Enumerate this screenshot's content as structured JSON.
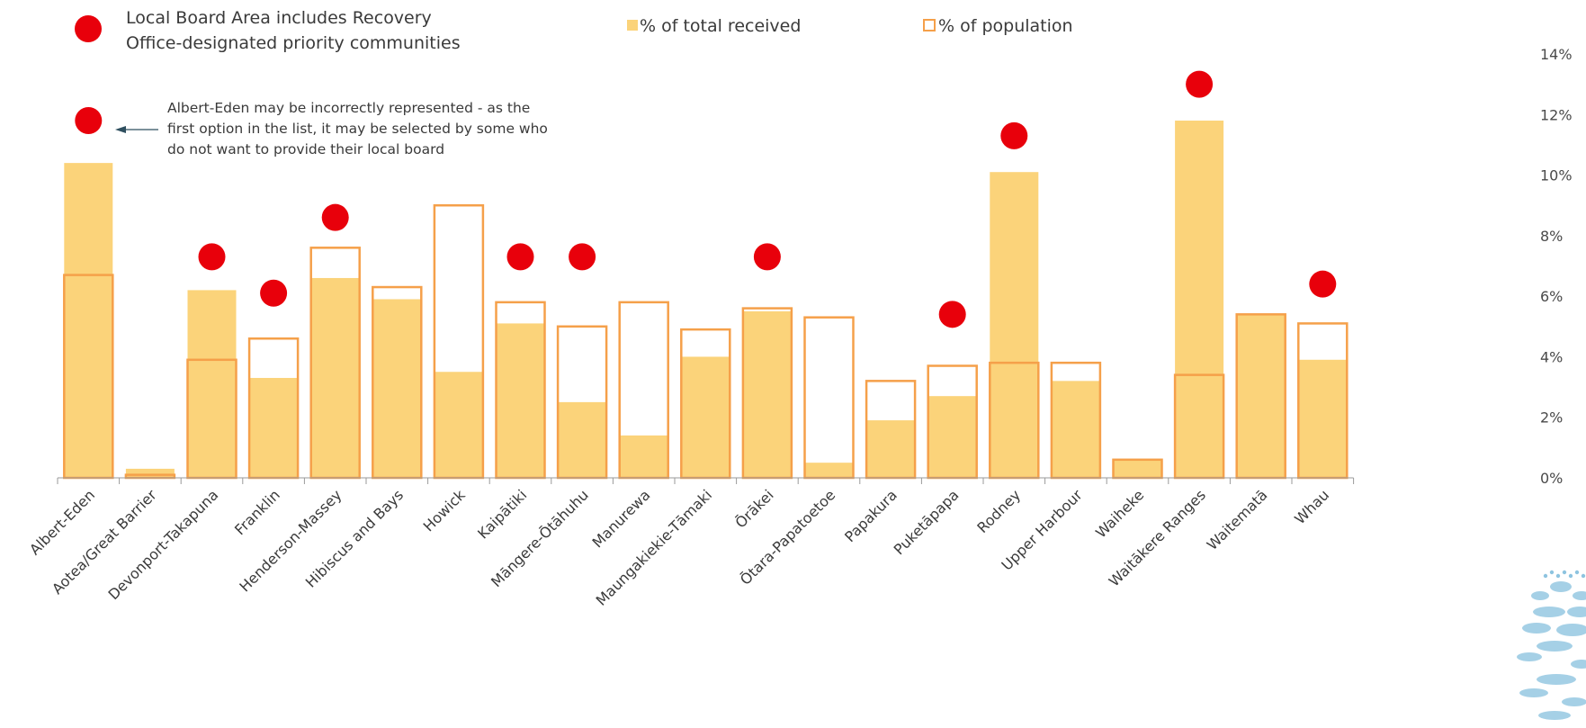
{
  "chart_data": {
    "type": "bar",
    "title": "",
    "xlabel": "",
    "ylabel": "",
    "ylim": [
      0,
      14
    ],
    "yticks": [
      0,
      2,
      4,
      6,
      8,
      10,
      12,
      14
    ],
    "ytick_labels": [
      "0%",
      "2%",
      "4%",
      "6%",
      "8%",
      "10%",
      "12%",
      "14%"
    ],
    "y_axis_side": "right",
    "grid": false,
    "legend_position": "top",
    "categories": [
      "Albert-Eden",
      "Aotea/Great Barrier",
      "Devonport-Takapuna",
      "Franklin",
      "Henderson-Massey",
      "Hibiscus and Bays",
      "Howick",
      "Kaipātiki",
      "Māngere-Ōtāhuhu",
      "Manurewa",
      "Maungakiekie-Tāmaki",
      "Ōrākei",
      "Ōtara-Papatoetoe",
      "Papakura",
      "Puketāpapa",
      "Rodney",
      "Upper Harbour",
      "Waiheke",
      "Waitākere Ranges",
      "Waitematā",
      "Whau"
    ],
    "series": [
      {
        "name": "% of total received",
        "style": "filled",
        "color": "#FBD37A",
        "values": [
          10.4,
          0.3,
          6.2,
          3.3,
          6.6,
          5.9,
          3.5,
          5.1,
          2.5,
          1.4,
          4.0,
          5.5,
          0.5,
          1.9,
          2.7,
          10.1,
          3.2,
          0.6,
          11.8,
          5.4,
          3.9
        ]
      },
      {
        "name": "% of population",
        "style": "outline",
        "color": "#F5A04A",
        "values": [
          6.7,
          0.1,
          3.9,
          4.6,
          7.6,
          6.3,
          9.0,
          5.8,
          5.0,
          5.8,
          4.9,
          5.6,
          5.3,
          3.2,
          3.7,
          3.8,
          3.8,
          0.6,
          3.4,
          5.4,
          5.1
        ]
      }
    ],
    "priority_marker": {
      "label_lines": [
        "Local Board Area includes Recovery",
        "Office-designated priority communities"
      ],
      "color": "#E8000B",
      "points": [
        {
          "category": "Albert-Eden",
          "y": 11.8
        },
        {
          "category": "Devonport-Takapuna",
          "y": 7.3
        },
        {
          "category": "Franklin",
          "y": 6.1
        },
        {
          "category": "Henderson-Massey",
          "y": 8.6
        },
        {
          "category": "Kaipātiki",
          "y": 7.3
        },
        {
          "category": "Māngere-Ōtāhuhu",
          "y": 7.3
        },
        {
          "category": "Ōrākei",
          "y": 7.3
        },
        {
          "category": "Puketāpapa",
          "y": 5.4
        },
        {
          "category": "Rodney",
          "y": 11.3
        },
        {
          "category": "Waitākere Ranges",
          "y": 13.0
        },
        {
          "category": "Whau",
          "y": 6.4
        }
      ]
    },
    "annotation": {
      "target": "Albert-Eden",
      "lines": [
        "Albert-Eden may be incorrectly represented - as the",
        "first option in the list, it may be selected by some who",
        "do not want to provide their local board"
      ]
    }
  },
  "logo": {
    "icon": "pohutukawa-logo-icon",
    "color": "#8EC4E0"
  }
}
